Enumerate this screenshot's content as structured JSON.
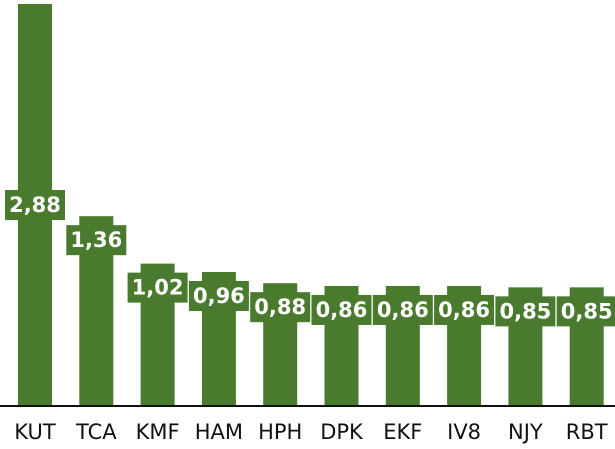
{
  "chart_data": {
    "type": "bar",
    "title": "",
    "xlabel": "",
    "ylabel": "",
    "categories": [
      "KUT",
      "TCA",
      "KMF",
      "HAM",
      "HPH",
      "DPK",
      "EKF",
      "IV8",
      "NJY",
      "RBT"
    ],
    "values": [
      2.88,
      1.36,
      1.02,
      0.96,
      0.88,
      0.86,
      0.86,
      0.86,
      0.85,
      0.85
    ],
    "value_labels": [
      "2,88",
      "1,36",
      "1,02",
      "0,96",
      "0,88",
      "0,86",
      "0,86",
      "0,86",
      "0,85",
      "0,85"
    ],
    "ylim": [
      0,
      2.88
    ],
    "grid": false,
    "legend": "none",
    "colors": {
      "bar": "#4a7a2e",
      "label_text": "#ffffff",
      "axis": "#111111"
    }
  }
}
